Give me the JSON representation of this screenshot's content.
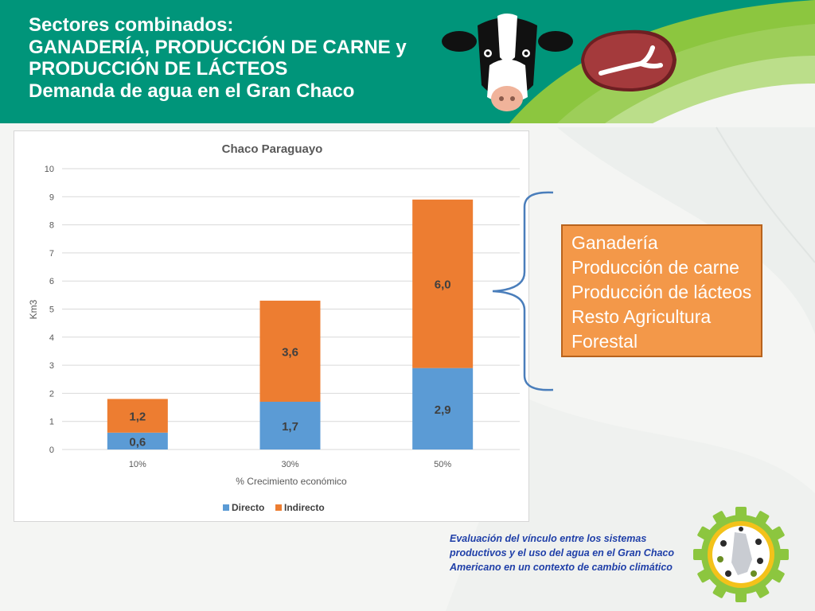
{
  "header": {
    "title_lines": [
      "Sectores combinados:",
      "GANADERÍA, PRODUCCIÓN DE CARNE y",
      "PRODUCCIÓN DE LÁCTEOS",
      "Demanda de agua en el Gran Chaco"
    ],
    "colors": {
      "teal": "#00957a",
      "green": "#8cc63f"
    }
  },
  "icons": [
    "cow-icon",
    "steak-icon",
    "project-logo-icon"
  ],
  "chart_data": {
    "type": "bar",
    "stacked": true,
    "title": "Chaco Paraguayo",
    "xlabel": "% Crecimiento económico",
    "ylabel": "Km3",
    "categories": [
      "10%",
      "30%",
      "50%"
    ],
    "ylim": [
      0,
      10
    ],
    "yticks": [
      "0",
      "1",
      "2",
      "3",
      "4",
      "5",
      "6",
      "7",
      "8",
      "9",
      "10"
    ],
    "grid": true,
    "legend_position": "bottom",
    "series": [
      {
        "name": "Directo",
        "values": [
          0.6,
          1.7,
          2.9
        ],
        "labels": [
          "0,6",
          "1,7",
          "2,9"
        ],
        "color": "#5b9bd5"
      },
      {
        "name": "Indirecto",
        "values": [
          1.2,
          3.6,
          6.0
        ],
        "labels": [
          "1,2",
          "3,6",
          "6,0"
        ],
        "color": "#ed7d31"
      }
    ]
  },
  "sectors_box": {
    "items": [
      "Ganadería",
      "Producción de carne",
      "Producción de lácteos",
      "Resto Agricultura",
      "Forestal"
    ],
    "color": "#f39849"
  },
  "footer": {
    "lines": [
      "Evaluación del vínculo entre los sistemas",
      "productivos y el uso del agua en el Gran Chaco",
      "Americano en un contexto de cambio climático"
    ]
  }
}
